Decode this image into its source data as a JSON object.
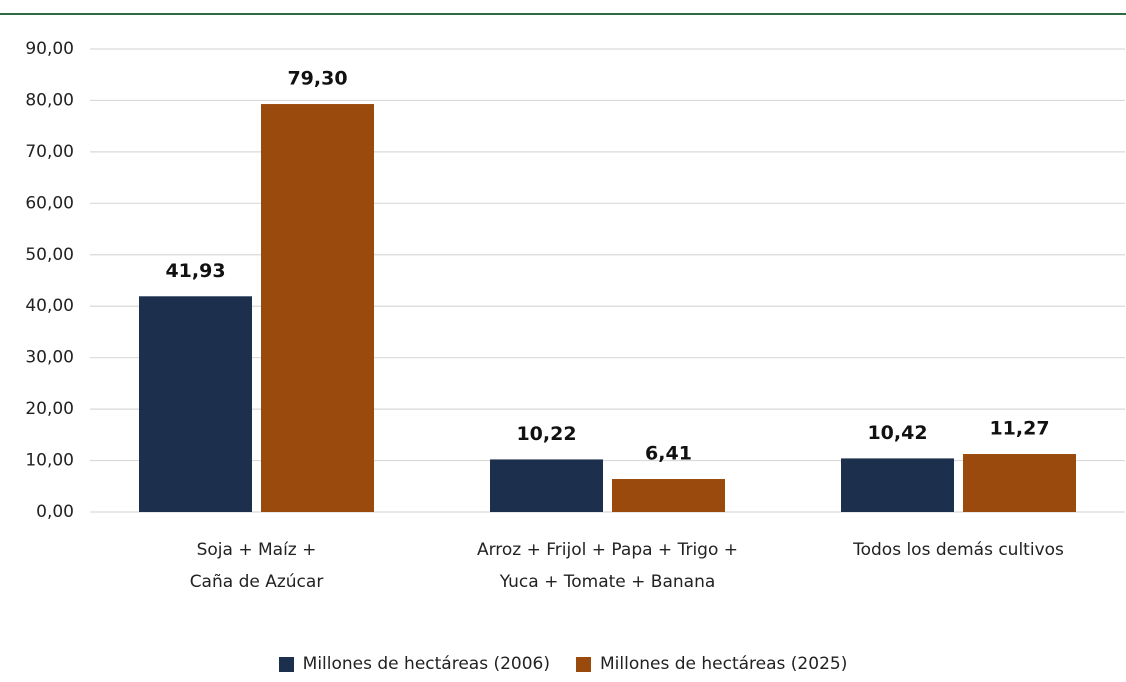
{
  "chart_data": {
    "type": "bar",
    "categories": [
      "Soja + Maíz +\nCaña de Azúcar",
      "Arroz + Frijol + Papa + Trigo +\nYuca + Tomate + Banana",
      "Todos los demás cultivos"
    ],
    "series": [
      {
        "name": "Millones de hectáreas (2006)",
        "color": "#1c2f4d",
        "values": [
          41.93,
          10.22,
          10.42
        ],
        "value_labels": [
          "41,93",
          "10,22",
          "10,42"
        ]
      },
      {
        "name": "Millones de hectáreas (2025)",
        "color": "#9a4a0d",
        "values": [
          79.3,
          6.41,
          11.27
        ],
        "value_labels": [
          "79,30",
          "6,41",
          "11,27"
        ]
      }
    ],
    "ylim": [
      0,
      90
    ],
    "yticks": [
      {
        "value": 0,
        "label": "0,00"
      },
      {
        "value": 10,
        "label": "10,00"
      },
      {
        "value": 20,
        "label": "20,00"
      },
      {
        "value": 30,
        "label": "30,00"
      },
      {
        "value": 40,
        "label": "40,00"
      },
      {
        "value": 50,
        "label": "50,00"
      },
      {
        "value": 60,
        "label": "60,00"
      },
      {
        "value": 70,
        "label": "70,00"
      },
      {
        "value": 80,
        "label": "80,00"
      },
      {
        "value": 90,
        "label": "90,00"
      }
    ],
    "grid": true,
    "legend": "bottom"
  }
}
